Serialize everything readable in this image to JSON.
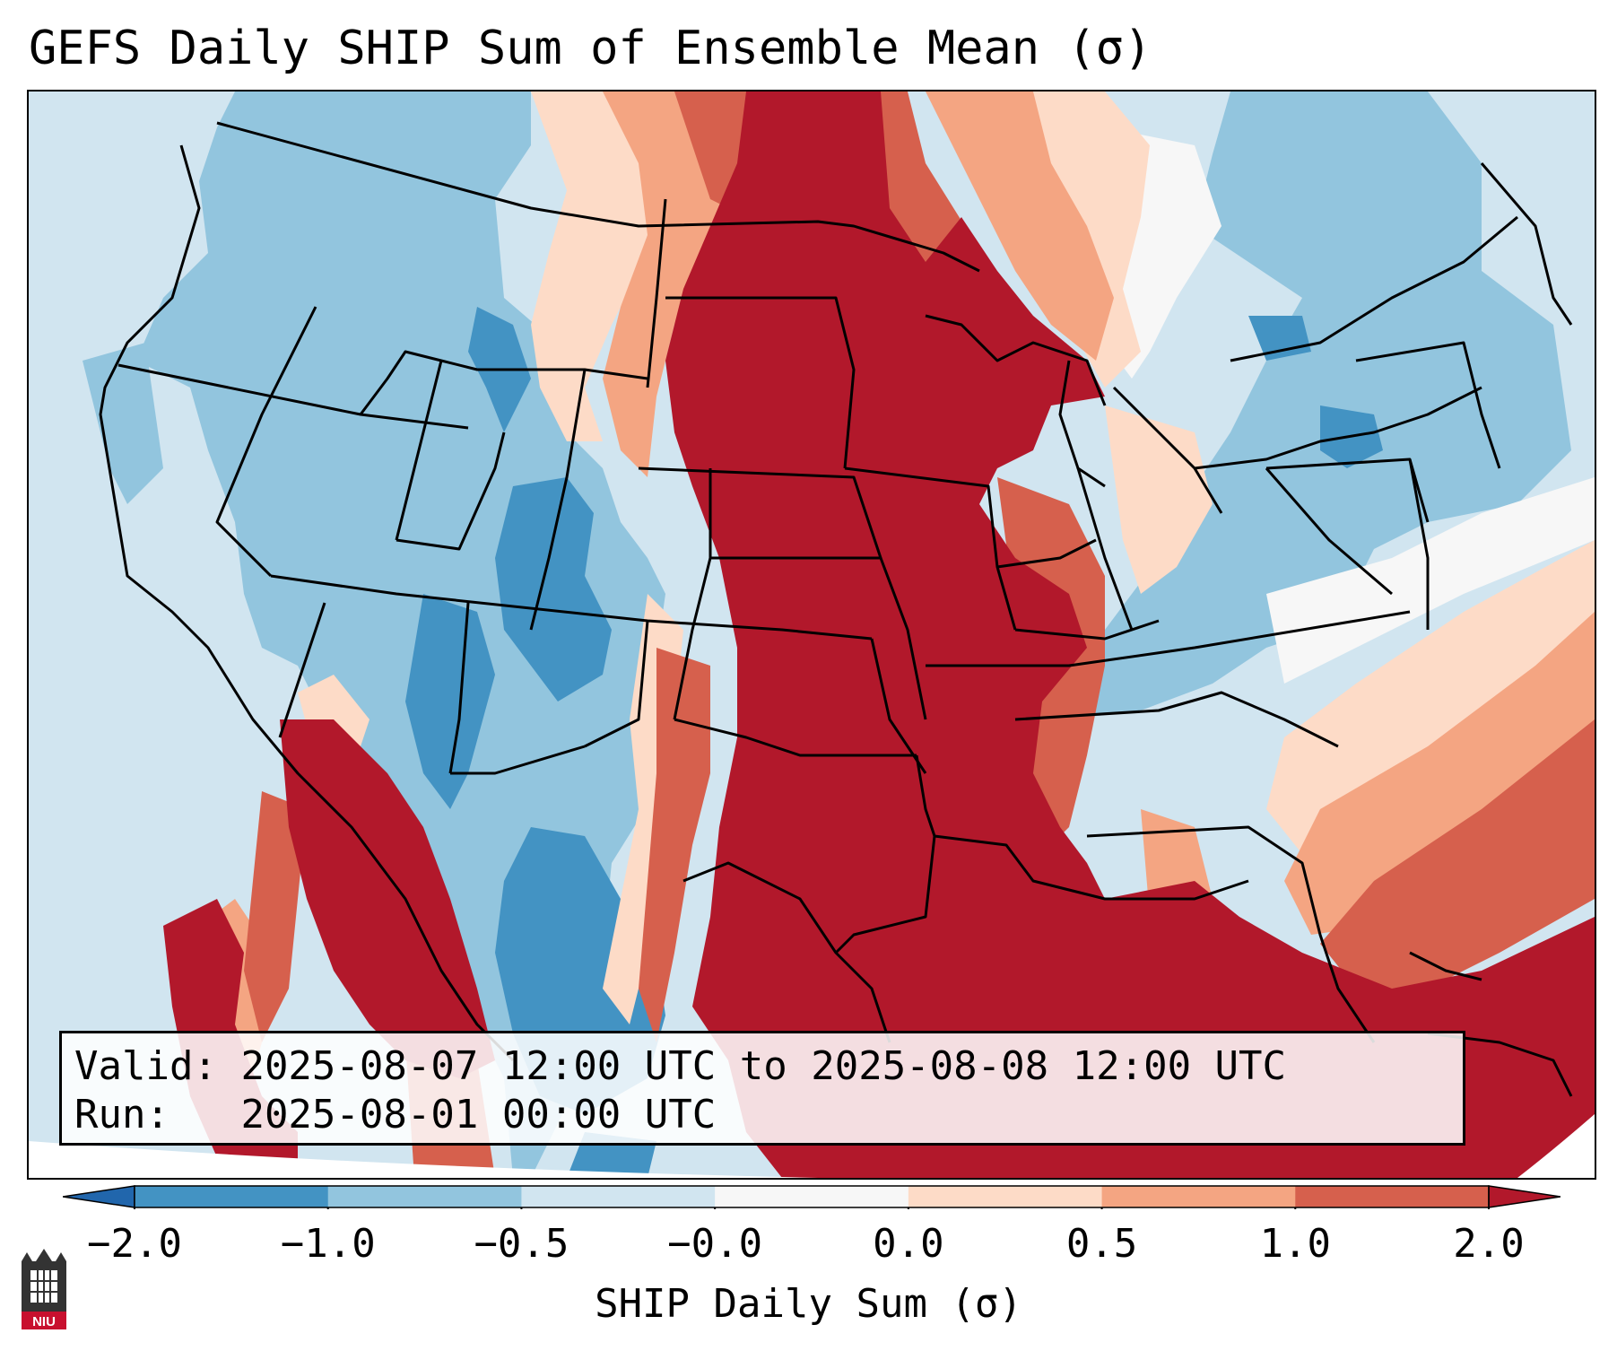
{
  "title": "GEFS Daily SHIP Sum of Ensemble Mean (σ)",
  "info": {
    "valid_label": "Valid:",
    "valid_value": "2025-08-07 12:00 UTC to 2025-08-08 12:00 UTC",
    "run_label": "Run:",
    "run_value": "2025-08-01 00:00 UTC"
  },
  "colorbar": {
    "label": "SHIP Daily Sum (σ)",
    "tick_labels": [
      "−2.0",
      "−1.0",
      "−0.5",
      "−0.0",
      "0.0",
      "0.5",
      "1.0",
      "2.0"
    ],
    "bin_colors": [
      "#4393c3",
      "#92c5de",
      "#d1e5f0",
      "#f7f7f7",
      "#fddbc7",
      "#f4a582",
      "#d6604d"
    ],
    "under_color": "#2166ac",
    "over_color": "#b2182b"
  },
  "logo": {
    "text": "NIU"
  }
}
